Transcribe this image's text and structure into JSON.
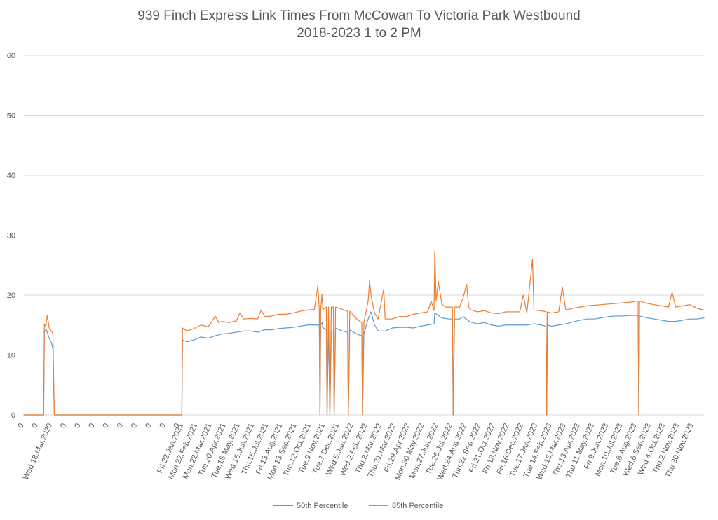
{
  "chart_data": {
    "type": "line",
    "title": [
      "939 Finch Express Link Times From McCowan To Victoria Park Westbound",
      "2018-2023 1 to 2 PM"
    ],
    "xlabel": "",
    "ylabel": "",
    "ylim": [
      0,
      60
    ],
    "yticks": [
      0,
      10,
      20,
      30,
      40,
      50,
      60
    ],
    "grid": true,
    "legend_position": "bottom",
    "x_labels": [
      "0",
      "0",
      "Wed.18.Mar.2020",
      "0",
      "0",
      "0",
      "0",
      "0",
      "0",
      "0",
      "0",
      "0",
      "Fri.22.Jan.2021",
      "Mon.22.Feb.2021",
      "Mon.22.Mar.2021",
      "Tue.20.Apr.2021",
      "Tue.18.May.2021",
      "Wed.16.Jun.2021",
      "Thu.15.Jul.2021",
      "Fri.13.Aug.2021",
      "Mon.13.Sep.2021",
      "Tue.12.Oct.2021",
      "Tue.9.Nov.2021",
      "Tue.7.Dec.2021",
      "Wed.5.Jan.2022",
      "Wed.2.Feb.2022",
      "Thu.3.Mar.2022",
      "Thu.31.Mar.2022",
      "Fri.29.Apr.2022",
      "Mon.30.May.2022",
      "Mon.27.Jun.2022",
      "Tue.26.Jul.2022",
      "Wed.24.Aug.2022",
      "Thu.22.Sep.2022",
      "Fri.21.Oct.2022",
      "Fri.18.Nov.2022",
      "Fri.16.Dec.2022",
      "Tue.17.Jan.2023",
      "Tue.14.Feb.2023",
      "Wed.15.Mar.2023",
      "Thu.13.Apr.2023",
      "Thu.11.May.2023",
      "Fri.9.Jun.2023",
      "Mon.10.Jul.2023",
      "Tue.8.Aug.2023",
      "Wed.6.Sep.2023",
      "Wed.4.Oct.2023",
      "Thu.2.Nov.2023",
      "Thu.30.Nov.2023"
    ],
    "x_index_range": [
      0,
      960
    ],
    "x_label_positions": [
      0,
      20,
      40,
      60,
      80,
      100,
      120,
      140,
      160,
      180,
      200,
      220,
      225,
      245,
      265,
      285,
      305,
      325,
      345,
      365,
      385,
      405,
      425,
      445,
      465,
      485,
      505,
      525,
      545,
      565,
      585,
      605,
      625,
      645,
      665,
      685,
      705,
      725,
      745,
      765,
      785,
      805,
      825,
      845,
      865,
      885,
      905,
      925,
      945
    ],
    "series": [
      {
        "name": "50th Percentile",
        "color": "#5B9BD5",
        "points": [
          [
            0,
            0
          ],
          [
            28,
            0
          ],
          [
            29,
            14
          ],
          [
            32,
            14.2
          ],
          [
            35,
            13
          ],
          [
            39,
            12
          ],
          [
            41,
            11
          ],
          [
            43,
            0
          ],
          [
            45,
            0
          ],
          [
            50,
            0
          ],
          [
            55,
            0
          ],
          [
            223,
            0
          ],
          [
            224,
            12.5
          ],
          [
            230,
            12.2
          ],
          [
            240,
            12.5
          ],
          [
            250,
            13
          ],
          [
            260,
            12.8
          ],
          [
            270,
            13.2
          ],
          [
            280,
            13.5
          ],
          [
            290,
            13.6
          ],
          [
            300,
            13.8
          ],
          [
            310,
            14
          ],
          [
            320,
            14
          ],
          [
            330,
            13.8
          ],
          [
            340,
            14.2
          ],
          [
            350,
            14.2
          ],
          [
            360,
            14.4
          ],
          [
            370,
            14.5
          ],
          [
            380,
            14.6
          ],
          [
            390,
            14.8
          ],
          [
            400,
            15
          ],
          [
            410,
            15
          ],
          [
            417,
            15
          ],
          [
            418,
            0
          ],
          [
            419,
            15
          ],
          [
            421,
            15.4
          ],
          [
            422,
            14.6
          ],
          [
            427,
            14.2
          ],
          [
            428,
            0
          ],
          [
            430,
            14.8
          ],
          [
            432,
            0
          ],
          [
            434,
            14
          ],
          [
            437,
            14
          ],
          [
            438,
            0
          ],
          [
            440,
            14.5
          ],
          [
            445,
            14.2
          ],
          [
            450,
            14
          ],
          [
            457,
            13.8
          ],
          [
            458,
            0
          ],
          [
            460,
            14.2
          ],
          [
            470,
            13.5
          ],
          [
            477,
            13.2
          ],
          [
            478,
            0
          ],
          [
            480,
            13.5
          ],
          [
            486,
            16
          ],
          [
            490,
            17.2
          ],
          [
            495,
            15
          ],
          [
            500,
            14
          ],
          [
            510,
            14
          ],
          [
            520,
            14.5
          ],
          [
            530,
            14.6
          ],
          [
            540,
            14.6
          ],
          [
            550,
            14.5
          ],
          [
            560,
            14.8
          ],
          [
            570,
            15
          ],
          [
            579,
            15.2
          ],
          [
            580,
            17
          ],
          [
            590,
            16.2
          ],
          [
            600,
            16
          ],
          [
            605,
            16
          ],
          [
            606,
            0
          ],
          [
            608,
            16
          ],
          [
            615,
            16
          ],
          [
            620,
            16.4
          ],
          [
            630,
            15.5
          ],
          [
            640,
            15.2
          ],
          [
            650,
            15.4
          ],
          [
            660,
            15
          ],
          [
            670,
            14.8
          ],
          [
            680,
            15
          ],
          [
            690,
            15
          ],
          [
            700,
            15
          ],
          [
            710,
            15
          ],
          [
            720,
            15.2
          ],
          [
            730,
            15
          ],
          [
            737,
            14.8
          ],
          [
            738,
            0
          ],
          [
            739,
            15
          ],
          [
            745,
            14.8
          ],
          [
            755,
            15
          ],
          [
            765,
            15.2
          ],
          [
            775,
            15.5
          ],
          [
            785,
            15.8
          ],
          [
            795,
            16
          ],
          [
            805,
            16
          ],
          [
            815,
            16.2
          ],
          [
            825,
            16.4
          ],
          [
            835,
            16.5
          ],
          [
            845,
            16.5
          ],
          [
            855,
            16.6
          ],
          [
            865,
            16.6
          ],
          [
            867,
            16.5
          ],
          [
            868,
            0
          ],
          [
            869,
            16.5
          ],
          [
            880,
            16.2
          ],
          [
            890,
            16
          ],
          [
            900,
            15.8
          ],
          [
            910,
            15.6
          ],
          [
            920,
            15.6
          ],
          [
            930,
            15.8
          ],
          [
            940,
            16
          ],
          [
            950,
            16
          ],
          [
            960,
            16.2
          ]
        ]
      },
      {
        "name": "85th Percentile",
        "color": "#ED7D31",
        "points": [
          [
            0,
            0
          ],
          [
            28,
            0
          ],
          [
            29,
            15.2
          ],
          [
            31,
            14.8
          ],
          [
            33,
            16.6
          ],
          [
            36,
            14.4
          ],
          [
            39,
            14
          ],
          [
            41,
            13.6
          ],
          [
            43,
            0
          ],
          [
            45,
            0
          ],
          [
            50,
            0
          ],
          [
            55,
            0
          ],
          [
            223,
            0
          ],
          [
            224,
            14.5
          ],
          [
            230,
            14
          ],
          [
            240,
            14.4
          ],
          [
            250,
            15
          ],
          [
            260,
            14.7
          ],
          [
            265,
            15.5
          ],
          [
            270,
            16.5
          ],
          [
            275,
            15.4
          ],
          [
            280,
            15.6
          ],
          [
            290,
            15.4
          ],
          [
            300,
            15.7
          ],
          [
            305,
            17
          ],
          [
            310,
            16
          ],
          [
            320,
            16.1
          ],
          [
            330,
            16
          ],
          [
            335,
            17.5
          ],
          [
            340,
            16.4
          ],
          [
            350,
            16.5
          ],
          [
            360,
            16.8
          ],
          [
            370,
            16.8
          ],
          [
            380,
            17
          ],
          [
            390,
            17.3
          ],
          [
            400,
            17.5
          ],
          [
            410,
            17.6
          ],
          [
            415,
            21.6
          ],
          [
            417,
            17.6
          ],
          [
            418,
            0
          ],
          [
            419,
            17.6
          ],
          [
            421,
            20.2
          ],
          [
            422,
            17.6
          ],
          [
            427,
            18
          ],
          [
            428,
            0
          ],
          [
            430,
            18
          ],
          [
            432,
            0
          ],
          [
            434,
            18
          ],
          [
            437,
            18
          ],
          [
            438,
            0
          ],
          [
            440,
            18
          ],
          [
            445,
            17.8
          ],
          [
            450,
            17.6
          ],
          [
            457,
            17.3
          ],
          [
            458,
            0
          ],
          [
            460,
            17.3
          ],
          [
            470,
            16
          ],
          [
            477,
            15.4
          ],
          [
            478,
            0
          ],
          [
            480,
            15.4
          ],
          [
            486,
            19
          ],
          [
            488,
            22.4
          ],
          [
            490,
            20
          ],
          [
            495,
            17
          ],
          [
            500,
            16
          ],
          [
            508,
            21
          ],
          [
            510,
            16
          ],
          [
            520,
            16
          ],
          [
            530,
            16.4
          ],
          [
            540,
            16.4
          ],
          [
            550,
            16.8
          ],
          [
            560,
            17
          ],
          [
            570,
            17.2
          ],
          [
            575,
            19
          ],
          [
            579,
            17.4
          ],
          [
            580,
            27.3
          ],
          [
            582,
            19
          ],
          [
            585,
            22.3
          ],
          [
            590,
            18.5
          ],
          [
            595,
            18
          ],
          [
            600,
            18
          ],
          [
            605,
            18
          ],
          [
            606,
            0
          ],
          [
            608,
            18
          ],
          [
            615,
            18
          ],
          [
            620,
            19.5
          ],
          [
            625,
            21.8
          ],
          [
            628,
            18
          ],
          [
            630,
            17.6
          ],
          [
            640,
            17.2
          ],
          [
            650,
            17.4
          ],
          [
            660,
            17
          ],
          [
            670,
            16.9
          ],
          [
            680,
            17.2
          ],
          [
            690,
            17.2
          ],
          [
            700,
            17.2
          ],
          [
            705,
            20
          ],
          [
            710,
            17
          ],
          [
            718,
            26
          ],
          [
            720,
            17.5
          ],
          [
            730,
            17.4
          ],
          [
            737,
            17.2
          ],
          [
            738,
            0
          ],
          [
            739,
            17.2
          ],
          [
            745,
            17
          ],
          [
            755,
            17.2
          ],
          [
            760,
            21.4
          ],
          [
            765,
            17.5
          ],
          [
            775,
            17.8
          ],
          [
            785,
            18
          ],
          [
            795,
            18.2
          ],
          [
            805,
            18.3
          ],
          [
            815,
            18.4
          ],
          [
            825,
            18.5
          ],
          [
            835,
            18.6
          ],
          [
            845,
            18.7
          ],
          [
            855,
            18.8
          ],
          [
            865,
            19
          ],
          [
            867,
            19
          ],
          [
            868,
            0
          ],
          [
            869,
            19
          ],
          [
            880,
            18.6
          ],
          [
            890,
            18.4
          ],
          [
            900,
            18.2
          ],
          [
            910,
            18
          ],
          [
            915,
            20.5
          ],
          [
            920,
            18
          ],
          [
            930,
            18.2
          ],
          [
            940,
            18.4
          ],
          [
            950,
            17.8
          ],
          [
            960,
            17.5
          ]
        ]
      }
    ]
  }
}
